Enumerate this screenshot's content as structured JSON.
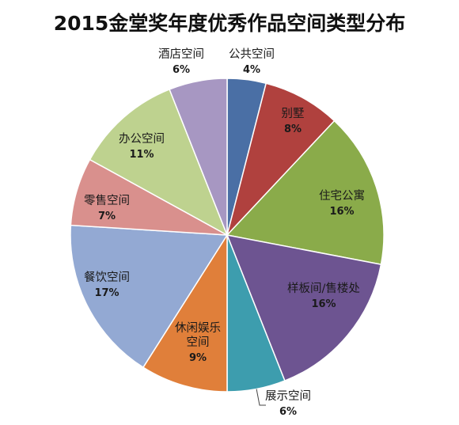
{
  "chart_data": {
    "type": "pie",
    "title": "2015金堂奖年度优秀作品空间类型分布",
    "slices": [
      {
        "label": "公共空间",
        "value": 4,
        "display": "4%",
        "color": "#4a6fa5",
        "label_lines": [
          "公共空间"
        ]
      },
      {
        "label": "别墅",
        "value": 8,
        "display": "8%",
        "color": "#b0413e",
        "label_lines": [
          "别墅"
        ]
      },
      {
        "label": "住宅公寓",
        "value": 16,
        "display": "16%",
        "color": "#8aab4a",
        "label_lines": [
          "住宅公寓"
        ]
      },
      {
        "label": "样板间/售楼处",
        "value": 16,
        "display": "16%",
        "color": "#6d5491",
        "label_lines": [
          "样板间/售楼处"
        ]
      },
      {
        "label": "展示空间",
        "value": 6,
        "display": "6%",
        "color": "#3d9dae",
        "label_lines": [
          "展示空间"
        ]
      },
      {
        "label": "休闲娱乐空间",
        "value": 9,
        "display": "9%",
        "color": "#e07f3a",
        "label_lines": [
          "休闲娱乐",
          "空间"
        ]
      },
      {
        "label": "餐饮空间",
        "value": 17,
        "display": "17%",
        "color": "#93a9d3",
        "label_lines": [
          "餐饮空间"
        ]
      },
      {
        "label": "零售空间",
        "value": 7,
        "display": "7%",
        "color": "#d9908d",
        "label_lines": [
          "零售空间"
        ]
      },
      {
        "label": "办公空间",
        "value": 11,
        "display": "11%",
        "color": "#bed28f",
        "label_lines": [
          "办公空间"
        ]
      },
      {
        "label": "酒店空间",
        "value": 6,
        "display": "6%",
        "color": "#a797c2",
        "label_lines": [
          "酒店空间"
        ]
      }
    ]
  }
}
